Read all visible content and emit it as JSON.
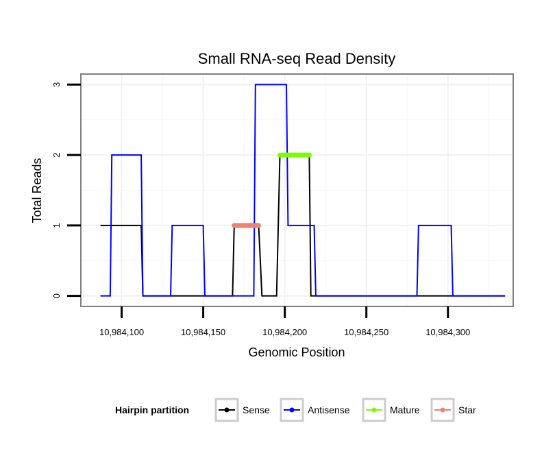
{
  "chart_data": {
    "type": "line",
    "title": "Small RNA-seq Read Density",
    "xlabel": "Genomic Position",
    "ylabel": "Total Reads",
    "xlim": [
      10984075,
      10984340
    ],
    "ylim": [
      -0.15,
      3.15
    ],
    "x_ticks": [
      10984100,
      10984150,
      10984200,
      10984250,
      10984300
    ],
    "x_tick_labels": [
      "10,984,100",
      "10,984,150",
      "10,984,200",
      "10,984,250",
      "10,984,300"
    ],
    "y_ticks": [
      0,
      1,
      2,
      3
    ],
    "y_tick_labels": [
      "0",
      "1",
      "2",
      "3"
    ],
    "grid": true,
    "legend_title": "Hairpin partition",
    "legend_position": "bottom",
    "series": [
      {
        "name": "Sense",
        "color": "#000000",
        "points": [
          [
            10984087,
            1
          ],
          [
            10984112,
            1
          ],
          [
            10984113,
            0
          ],
          [
            10984168,
            0
          ],
          [
            10984169,
            1
          ],
          [
            10984184,
            1
          ],
          [
            10984186,
            0
          ],
          [
            10984195,
            0
          ],
          [
            10984197,
            2
          ],
          [
            10984215,
            2
          ],
          [
            10984216,
            0
          ],
          [
            10984335,
            0
          ]
        ]
      },
      {
        "name": "Antisense",
        "color": "#0000ff",
        "points": [
          [
            10984087,
            0
          ],
          [
            10984093,
            0
          ],
          [
            10984094,
            2
          ],
          [
            10984112,
            2
          ],
          [
            10984113,
            0
          ],
          [
            10984130,
            0
          ],
          [
            10984131,
            1
          ],
          [
            10984150,
            1
          ],
          [
            10984151,
            0
          ],
          [
            10984181,
            0
          ],
          [
            10984182,
            3
          ],
          [
            10984201,
            3
          ],
          [
            10984202,
            1
          ],
          [
            10984218,
            1
          ],
          [
            10984219,
            0
          ],
          [
            10984281,
            0
          ],
          [
            10984282,
            1
          ],
          [
            10984302,
            1
          ],
          [
            10984303,
            0
          ],
          [
            10984335,
            0
          ]
        ]
      },
      {
        "name": "Mature",
        "color": "#7cfc00",
        "points": [
          [
            10984197,
            2
          ],
          [
            10984215,
            2
          ]
        ]
      },
      {
        "name": "Star",
        "color": "#f08070",
        "points": [
          [
            10984169,
            1
          ],
          [
            10984184,
            1
          ]
        ]
      }
    ]
  }
}
